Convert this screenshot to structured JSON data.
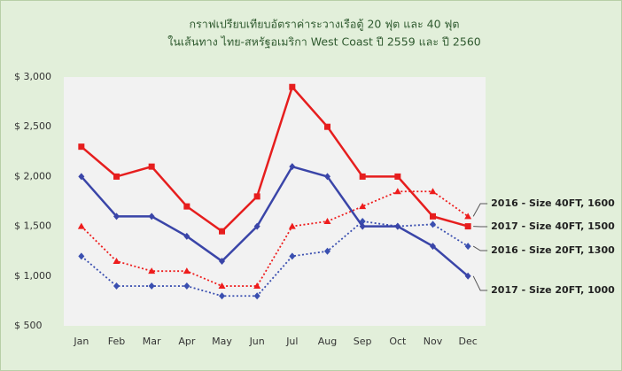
{
  "chart_data": {
    "type": "line",
    "title": [
      "กราฟเปรียบเทียบอัตราค่าระวางเรือตู้ 20 ฟุต และ 40 ฟุต",
      "ในเส้นทาง ไทย-สหรัฐอเมริกา West Coast  ปี 2559 และ ปี 2560"
    ],
    "categories": [
      "Jan",
      "Feb",
      "Mar",
      "Apr",
      "May",
      "Jun",
      "Jul",
      "Aug",
      "Sep",
      "Oct",
      "Nov",
      "Dec"
    ],
    "series": [
      {
        "name": "2016 - Size 40FT, 1600",
        "color": "#ee1c1c",
        "dash": "dotted",
        "marker": "triangle",
        "values": [
          1500,
          1150,
          1050,
          1050,
          900,
          900,
          1500,
          1550,
          1700,
          1850,
          1850,
          1600
        ]
      },
      {
        "name": "2017 - Size 40FT, 1500",
        "color": "#e61e1e",
        "dash": "solid",
        "marker": "square",
        "values": [
          2300,
          2000,
          2100,
          1700,
          1450,
          1800,
          2900,
          2500,
          2000,
          2000,
          1600,
          1500
        ]
      },
      {
        "name": "2016 - Size 20FT, 1300",
        "color": "#3a4fb0",
        "dash": "dotted",
        "marker": "diamond",
        "values": [
          1200,
          900,
          900,
          900,
          800,
          800,
          1200,
          1250,
          1550,
          1500,
          1520,
          1300
        ]
      },
      {
        "name": "2017 - Size 20FT, 1000",
        "color": "#3a45a8",
        "dash": "solid",
        "marker": "diamond",
        "values": [
          2000,
          1600,
          1600,
          1400,
          1150,
          1500,
          2100,
          2000,
          1500,
          1500,
          1300,
          1000
        ]
      }
    ],
    "ylim": [
      500,
      3000
    ],
    "yticks": [
      {
        "value": 500,
        "label": "$ 500"
      },
      {
        "value": 1000,
        "label": "$ 1,000"
      },
      {
        "value": 1500,
        "label": "$ 1,500"
      },
      {
        "value": 2000,
        "label": "$ 2,000"
      },
      {
        "value": 2500,
        "label": "$ 2,500"
      },
      {
        "value": 3000,
        "label": "$ 3,000"
      }
    ],
    "grid": false
  }
}
